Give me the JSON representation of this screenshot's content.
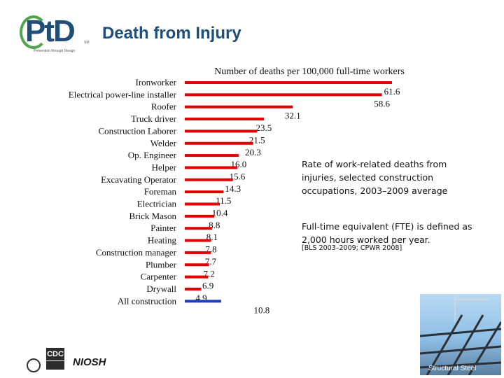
{
  "header": {
    "logo_text": "PtD",
    "logo_tagline": "Prevention through Design",
    "logo_tm": "SM",
    "title": "Death from Injury"
  },
  "notes": {
    "description": "Rate of work-related deaths from injuries, selected construction occupations, 2003–2009 average",
    "fte": "Full-time equivalent (FTE) is defined as 2,000 hours worked per year.",
    "source": "[BLS 2003–2009; CPWR 2008]"
  },
  "photo": {
    "caption": "Structural Steel"
  },
  "footer": {
    "cdc_label": "CDC",
    "niosh_label": "NIOSH"
  },
  "colors": {
    "bar": "#e00000",
    "total_bar": "#1f3fbf",
    "title": "#1f4e79"
  },
  "chart_data": {
    "type": "bar",
    "orientation": "horizontal",
    "title": "Number of deaths per 100,000 full-time workers",
    "categories": [
      "Ironworker",
      "Electrical power-line installer",
      "Roofer",
      "Truck driver",
      "Construction Laborer",
      "Welder",
      "Op. Engineer",
      "Helper",
      "Excavating Operator",
      "Foreman",
      "Electrician",
      "Brick Mason",
      "Painter",
      "Heating",
      "Construction manager",
      "Plumber",
      "Carpenter",
      "Drywall",
      "All construction"
    ],
    "values": [
      61.6,
      58.6,
      32.1,
      23.5,
      21.5,
      20.3,
      16.0,
      15.6,
      14.3,
      11.5,
      10.4,
      8.8,
      8.1,
      7.8,
      7.7,
      7.2,
      6.9,
      4.9,
      10.8
    ],
    "labels": [
      "61.6",
      "58.6",
      "32.1",
      "23.5",
      "21.5",
      "20.3",
      "16.0",
      "15.6",
      "14.3",
      "11.5",
      "10.4",
      "8.8",
      "8.1",
      "7.8",
      "7.7",
      "7.2",
      "6.9",
      "4.9",
      "10.8"
    ],
    "highlight_category": "All construction",
    "xlim": [
      0,
      61.6
    ],
    "grid": false,
    "legend": "none"
  }
}
